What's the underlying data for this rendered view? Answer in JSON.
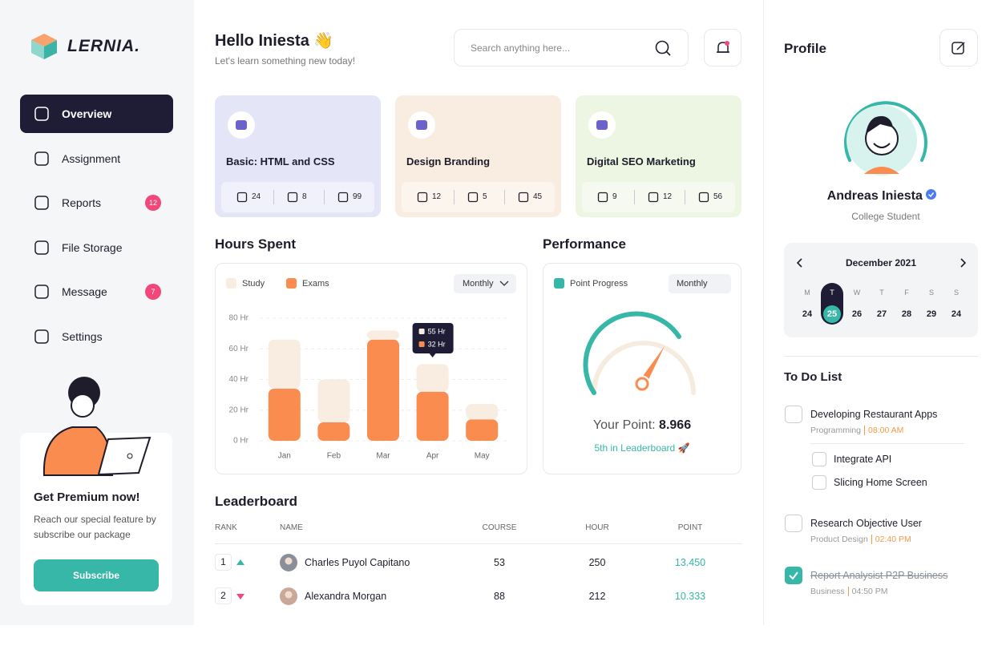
{
  "sidebar": {
    "logo": "LERNIA.",
    "nav": [
      {
        "label": "Overview",
        "active": true
      },
      {
        "label": "Assignment"
      },
      {
        "label": "Reports",
        "badge": "12"
      },
      {
        "label": "File Storage"
      },
      {
        "label": "Message",
        "badge": "7"
      },
      {
        "label": "Settings"
      }
    ],
    "premium": {
      "title": "Get Premium now!",
      "text": "Reach our special feature by subscribe our package",
      "button": "Subscribe"
    }
  },
  "header": {
    "title": "Hello Iniesta 👋",
    "subtitle": "Let's learn something new today!",
    "search_placeholder": "Search anything here..."
  },
  "courses": [
    {
      "title": "Basic: HTML and CSS",
      "color": "#e5e5f8",
      "lessons": "24",
      "tasks": "8",
      "students": "99"
    },
    {
      "title": "Design Branding",
      "color": "#f9ede1",
      "lessons": "12",
      "tasks": "5",
      "students": "45"
    },
    {
      "title": "Digital SEO Marketing",
      "color": "#edf5e3",
      "lessons": "9",
      "tasks": "12",
      "students": "56"
    }
  ],
  "chart_data": {
    "type": "bar",
    "stacked": true,
    "title": "Hours Spent",
    "period": "Monthly",
    "categories": [
      "Jan",
      "Feb",
      "Mar",
      "Apr",
      "May"
    ],
    "series": [
      {
        "name": "Study",
        "color": "#f8ede0",
        "values": [
          32,
          28,
          6,
          18,
          10
        ]
      },
      {
        "name": "Exams",
        "color": "#fb8c4f",
        "values": [
          34,
          12,
          66,
          32,
          14
        ]
      }
    ],
    "ylim": [
      0,
      80
    ],
    "yticks": [
      {
        "value": 0,
        "label": "0 Hr"
      },
      {
        "value": 20,
        "label": "20 Hr"
      },
      {
        "value": 40,
        "label": "40 Hr"
      },
      {
        "value": 60,
        "label": "60 Hr"
      },
      {
        "value": 80,
        "label": "80 Hr"
      }
    ],
    "grid": true,
    "tooltip": [
      "55 Hr",
      "32 Hr"
    ]
  },
  "performance": {
    "title": "Performance",
    "legend": "Point Progress",
    "period": "Monthly",
    "point_label": "Your Point:",
    "point": "8.966",
    "rank": "5th in Leaderboard 🚀"
  },
  "leaderboard": {
    "title": "Leaderboard",
    "columns": [
      "RANK",
      "NAME",
      "COURSE",
      "HOUR",
      "POINT"
    ],
    "rows": [
      {
        "rank": "1",
        "trend": "up",
        "name": "Charles Puyol Capitano",
        "course": "53",
        "hour": "250",
        "point": "13.450"
      },
      {
        "rank": "2",
        "trend": "down",
        "name": "Alexandra Morgan",
        "course": "88",
        "hour": "212",
        "point": "10.333"
      }
    ]
  },
  "profile": {
    "title": "Profile",
    "name": "Andreas Iniesta",
    "role": "College Student"
  },
  "calendar": {
    "month": "December 2021",
    "days": [
      {
        "day": "M",
        "date": "24"
      },
      {
        "day": "T",
        "date": "25",
        "selected": true
      },
      {
        "day": "W",
        "date": "26"
      },
      {
        "day": "T",
        "date": "27"
      },
      {
        "day": "F",
        "date": "28"
      },
      {
        "day": "S",
        "date": "29"
      },
      {
        "day": "S",
        "date": "24"
      }
    ]
  },
  "todo": {
    "title": "To Do List",
    "items": [
      {
        "title": "Developing Restaurant Apps",
        "category": "Programming",
        "time": "08:00 AM",
        "done": false,
        "subtasks": [
          "Integrate API",
          "Slicing Home Screen"
        ]
      },
      {
        "title": "Research Objective User",
        "category": "Product Design",
        "time": "02:40 PM",
        "done": false
      },
      {
        "title": "Report Analysist P2P Business",
        "category": "Business",
        "time": "04:50 PM",
        "done": true
      }
    ]
  }
}
